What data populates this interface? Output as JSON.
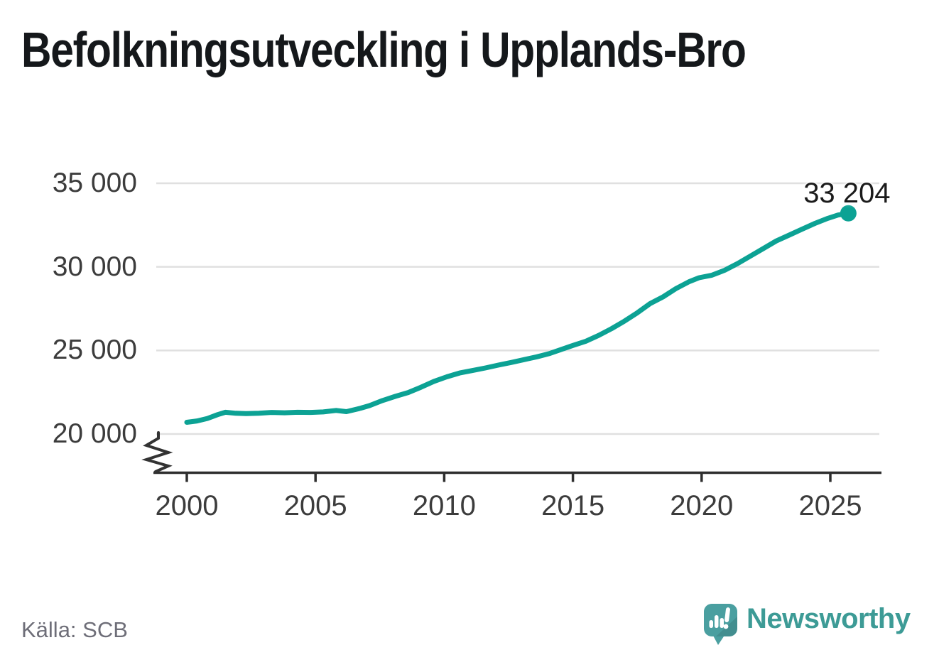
{
  "title": "Befolkningsutveckling i Upplands-Bro",
  "source": "Källa: SCB",
  "annotation": {
    "label": "33 204"
  },
  "branding": {
    "name": "Newsworthy",
    "icon": "newsworthy-speech-bubble-bar-chart-icon",
    "text_color": "#3d9b96",
    "bubble_color": "#4a9fa0",
    "bubble_shade_color": "#3e8f91"
  },
  "colors": {
    "line": "#0ca294",
    "grid": "#e0e0e0",
    "axis": "#2e2e2e",
    "tick_label": "#3c3c3c",
    "annotation": "#1b1b1b",
    "title": "#15181b",
    "source": "#6e6e78"
  },
  "chart_data": {
    "type": "line",
    "title": "Befolkningsutveckling i Upplands-Bro",
    "xlabel": "",
    "ylabel": "",
    "grid": "horizontal",
    "legend": "none",
    "axis_break_bottom_left": true,
    "xlim": [
      1998.7,
      2026.9
    ],
    "ylim_displayed": [
      20000,
      35000
    ],
    "x_ticks": [
      {
        "value": 2000,
        "label": "2000"
      },
      {
        "value": 2005,
        "label": "2005"
      },
      {
        "value": 2010,
        "label": "2010"
      },
      {
        "value": 2015,
        "label": "2015"
      },
      {
        "value": 2020,
        "label": "2020"
      },
      {
        "value": 2025,
        "label": "2025"
      }
    ],
    "y_ticks": [
      {
        "value": 20000,
        "label": "20 000"
      },
      {
        "value": 25000,
        "label": "25 000"
      },
      {
        "value": 30000,
        "label": "30 000"
      },
      {
        "value": 35000,
        "label": "35 000"
      }
    ],
    "end_point": {
      "x": 2025.7,
      "y": 33204,
      "label": "33 204"
    },
    "series": [
      {
        "name": "Befolkning i Upplands-Bro",
        "points": [
          [
            2000.0,
            20700
          ],
          [
            2000.4,
            20780
          ],
          [
            2000.8,
            20930
          ],
          [
            2001.2,
            21160
          ],
          [
            2001.5,
            21300
          ],
          [
            2001.9,
            21240
          ],
          [
            2002.3,
            21220
          ],
          [
            2002.8,
            21240
          ],
          [
            2003.3,
            21290
          ],
          [
            2003.8,
            21270
          ],
          [
            2004.3,
            21300
          ],
          [
            2004.8,
            21290
          ],
          [
            2005.3,
            21320
          ],
          [
            2005.8,
            21410
          ],
          [
            2006.2,
            21340
          ],
          [
            2006.7,
            21520
          ],
          [
            2007.1,
            21700
          ],
          [
            2007.6,
            22000
          ],
          [
            2008.1,
            22250
          ],
          [
            2008.6,
            22480
          ],
          [
            2009.1,
            22800
          ],
          [
            2009.6,
            23150
          ],
          [
            2010.1,
            23420
          ],
          [
            2010.6,
            23650
          ],
          [
            2011.1,
            23800
          ],
          [
            2011.6,
            23950
          ],
          [
            2012.1,
            24120
          ],
          [
            2012.6,
            24280
          ],
          [
            2013.1,
            24450
          ],
          [
            2013.6,
            24620
          ],
          [
            2014.1,
            24820
          ],
          [
            2014.5,
            25030
          ],
          [
            2015.0,
            25300
          ],
          [
            2015.5,
            25550
          ],
          [
            2016.0,
            25900
          ],
          [
            2016.5,
            26300
          ],
          [
            2017.0,
            26750
          ],
          [
            2017.5,
            27250
          ],
          [
            2018.0,
            27800
          ],
          [
            2018.5,
            28200
          ],
          [
            2019.0,
            28700
          ],
          [
            2019.5,
            29100
          ],
          [
            2019.9,
            29350
          ],
          [
            2020.4,
            29500
          ],
          [
            2020.9,
            29800
          ],
          [
            2021.4,
            30200
          ],
          [
            2021.9,
            30650
          ],
          [
            2022.4,
            31100
          ],
          [
            2022.9,
            31550
          ],
          [
            2023.4,
            31900
          ],
          [
            2023.9,
            32250
          ],
          [
            2024.4,
            32600
          ],
          [
            2024.9,
            32900
          ],
          [
            2025.3,
            33100
          ],
          [
            2025.7,
            33204
          ]
        ]
      }
    ]
  }
}
